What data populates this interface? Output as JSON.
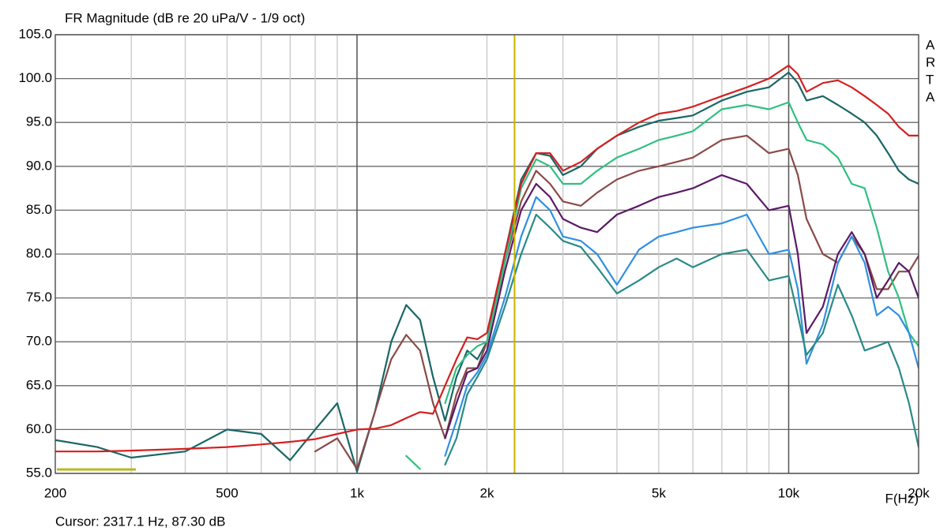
{
  "chart_data": {
    "type": "line",
    "title": "FR Magnitude (dB re 20 uPa/V - 1/9 oct)",
    "x_label": "F(Hz)",
    "side_letters": [
      "A",
      "R",
      "T",
      "A"
    ],
    "cursor": {
      "label": "Cursor: 2317.1 Hz, 87.30 dB",
      "x": 2317.1,
      "color": "#c8b400"
    },
    "log_x": true,
    "x": [
      200,
      250,
      300,
      400,
      500,
      600,
      700,
      800,
      900,
      1000,
      1100,
      1200,
      1300,
      1400,
      1500,
      1600,
      1700,
      1800,
      1900,
      2000,
      2200,
      2400,
      2600,
      2800,
      3000,
      3300,
      3600,
      4000,
      4500,
      5000,
      5500,
      6000,
      7000,
      8000,
      9000,
      10000,
      10500,
      11000,
      12000,
      13000,
      14000,
      15000,
      16000,
      17000,
      18000,
      19000,
      20000
    ],
    "series": [
      {
        "color": "#1a6666",
        "values": [
          58.8,
          58,
          56.8,
          57.5,
          60,
          59.5,
          56.5,
          60,
          63,
          55.2,
          62,
          70,
          74.2,
          72.5,
          66,
          61,
          66,
          69,
          68,
          70,
          80,
          88.5,
          91.5,
          91.2,
          89,
          90,
          92,
          93.5,
          94.5,
          95.2,
          95.5,
          95.8,
          97.5,
          98.5,
          99,
          100.7,
          99.5,
          97.5,
          98,
          97,
          96,
          95,
          93.5,
          91.5,
          89.5,
          88.5,
          88
        ]
      },
      {
        "color": "#8a4a48",
        "values": [
          null,
          null,
          null,
          null,
          null,
          null,
          null,
          57.5,
          59,
          55.5,
          62,
          68,
          70.8,
          69,
          63,
          59,
          64,
          67,
          67,
          70,
          79,
          86,
          89.5,
          88,
          86,
          85.5,
          87,
          88.5,
          89.5,
          90,
          90.5,
          91,
          93,
          93.5,
          91.5,
          92,
          89,
          84,
          80,
          79,
          82,
          80,
          76,
          76,
          78,
          78,
          79.8
        ]
      },
      {
        "color": "#30c080",
        "values": [
          null,
          null,
          null,
          null,
          null,
          null,
          null,
          null,
          null,
          null,
          null,
          null,
          57,
          55.5,
          null,
          63,
          67,
          68.5,
          69.5,
          70,
          79,
          87.5,
          90.8,
          90,
          88,
          88,
          89.5,
          91,
          92,
          93,
          93.5,
          94,
          96.5,
          97,
          96.5,
          97.3,
          95,
          93,
          92.5,
          91,
          88,
          87.5,
          83,
          78,
          75,
          71,
          69.5
        ]
      },
      {
        "color": "#5a1a66",
        "values": [
          null,
          null,
          null,
          null,
          null,
          null,
          null,
          null,
          null,
          null,
          null,
          null,
          null,
          null,
          null,
          59,
          63,
          66.5,
          67,
          69,
          78,
          85,
          88,
          86.5,
          84,
          83,
          82.5,
          84.5,
          85.5,
          86.5,
          87,
          87.5,
          89,
          88,
          85,
          85.5,
          80,
          71,
          74,
          80,
          82.5,
          80,
          75,
          77,
          79,
          78,
          75
        ]
      },
      {
        "color": "#3090e0",
        "values": [
          null,
          null,
          null,
          null,
          null,
          null,
          null,
          null,
          null,
          null,
          null,
          null,
          null,
          null,
          null,
          57,
          61,
          65,
          66.5,
          68.5,
          75,
          82,
          86.5,
          85,
          82,
          81.5,
          80,
          76.5,
          80.5,
          82,
          82.5,
          83,
          83.5,
          84.5,
          80,
          80.5,
          76,
          67.5,
          72,
          79,
          82,
          79,
          73,
          74,
          73,
          71,
          67
        ]
      },
      {
        "color": "#2a8a88",
        "values": [
          null,
          null,
          null,
          null,
          null,
          null,
          null,
          null,
          null,
          null,
          null,
          null,
          null,
          null,
          null,
          56,
          59,
          64,
          66,
          68,
          74,
          80,
          84.5,
          83,
          81.5,
          80.8,
          78.5,
          75.5,
          77,
          78.5,
          79.5,
          78.5,
          80,
          80.5,
          77,
          77.5,
          73,
          68.5,
          71,
          76.5,
          73,
          69,
          69.5,
          70,
          67,
          63,
          58
        ]
      },
      {
        "color": "#d42020",
        "values": [
          57.5,
          57.5,
          57.6,
          57.8,
          58,
          58.3,
          58.6,
          58.9,
          59.5,
          60,
          60.1,
          60.5,
          61.3,
          62,
          61.8,
          65,
          68,
          70.5,
          70.3,
          71,
          80,
          88,
          91.5,
          91.5,
          89.5,
          90.5,
          92,
          93.5,
          95,
          96,
          96.3,
          96.8,
          98,
          99,
          100,
          101.5,
          100.5,
          98.5,
          99.5,
          99.8,
          99,
          98,
          97,
          96,
          94.5,
          93.5,
          93.5
        ]
      }
    ],
    "xlim": [
      200,
      20000
    ],
    "xticks": [
      200,
      500,
      {
        "value": 1000,
        "label": "1k"
      },
      {
        "value": 2000,
        "label": "2k"
      },
      {
        "value": 5000,
        "label": "5k"
      },
      {
        "value": 10000,
        "label": "10k"
      },
      {
        "value": 20000,
        "label": "20k"
      }
    ],
    "xticks_minor": [
      300,
      400,
      600,
      700,
      800,
      900,
      3000,
      4000,
      6000,
      7000,
      8000,
      9000
    ],
    "xticks_major": [
      1000,
      10000
    ],
    "ylim": [
      55,
      105
    ],
    "yticks": [
      {
        "value": 55,
        "label": "55.0"
      },
      {
        "value": 60,
        "label": "60.0"
      },
      {
        "value": 65,
        "label": "65.0"
      },
      {
        "value": 70,
        "label": "70.0"
      },
      {
        "value": 75,
        "label": "75.0"
      },
      {
        "value": 80,
        "label": "80.0"
      },
      {
        "value": 85,
        "label": "85.0"
      },
      {
        "value": 90,
        "label": "90.0"
      },
      {
        "value": 95,
        "label": "95.0"
      },
      {
        "value": 100,
        "label": "100.0"
      },
      {
        "value": 105,
        "label": "105.0"
      }
    ],
    "grid": true
  }
}
